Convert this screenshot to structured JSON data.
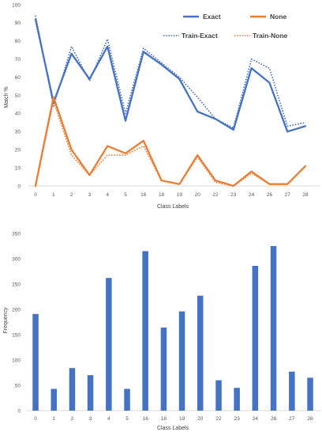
{
  "chart_data": [
    {
      "type": "line",
      "categories": [
        "0",
        "1",
        "2",
        "3",
        "4",
        "5",
        "16",
        "18",
        "19",
        "20",
        "22",
        "23",
        "24",
        "26",
        "27",
        "28"
      ],
      "ylabel": "Match %",
      "xlabel": "Class Labels",
      "ylim": [
        0,
        100
      ],
      "yticks": [
        "0",
        "10",
        "20",
        "30",
        "40",
        "50",
        "60",
        "70",
        "80",
        "90",
        "100"
      ],
      "legend": "top-right",
      "grid": false,
      "series": [
        {
          "name": "Exact",
          "style": "solid",
          "color": "#4472c4",
          "values": [
            92,
            46,
            73,
            59,
            77,
            36,
            74,
            67,
            59,
            41,
            37,
            31,
            65,
            57,
            30,
            33
          ]
        },
        {
          "name": "None",
          "style": "solid",
          "color": "#ed7d31",
          "values": [
            0,
            49,
            20,
            6,
            22,
            18,
            25,
            3,
            1,
            17,
            3,
            0,
            8,
            1,
            1,
            11
          ]
        },
        {
          "name": "Train-Exact",
          "style": "dotted",
          "color": "#4472c4",
          "values": [
            94,
            44,
            77,
            58,
            81,
            40,
            76,
            68,
            60,
            49,
            37,
            32,
            70,
            65,
            33,
            35
          ]
        },
        {
          "name": "Train-None",
          "style": "dotted",
          "color": "#ed7d31",
          "values": [
            0,
            47,
            17,
            6,
            17,
            17,
            22,
            3,
            1,
            16,
            2,
            0,
            7,
            1,
            1,
            11
          ]
        }
      ]
    },
    {
      "type": "bar",
      "categories": [
        "0",
        "1",
        "2",
        "3",
        "4",
        "5",
        "16",
        "18",
        "19",
        "20",
        "22",
        "23",
        "24",
        "26",
        "27",
        "28"
      ],
      "ylabel": "Frequency",
      "xlabel": "Class Labels",
      "ylim": [
        0,
        350
      ],
      "yticks": [
        "0",
        "50",
        "100",
        "150",
        "200",
        "250",
        "300",
        "350"
      ],
      "grid": false,
      "color": "#4472c4",
      "values": [
        191,
        43,
        84,
        70,
        262,
        43,
        315,
        164,
        196,
        227,
        60,
        45,
        286,
        325,
        77,
        65
      ]
    }
  ]
}
